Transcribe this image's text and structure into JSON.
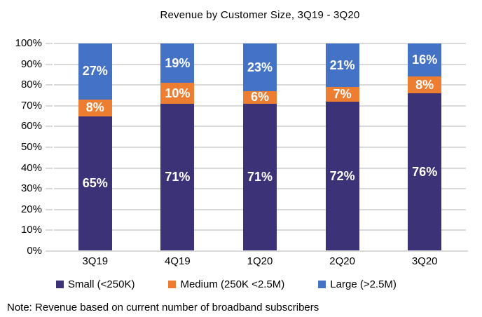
{
  "title": "Revenue by Customer Size, 3Q19 - 3Q20",
  "note": "Note: Revenue based on current number of  broadband subscribers",
  "colors": {
    "small": "#3c3277",
    "medium": "#ed7d31",
    "large": "#4472c4",
    "gridline": "#d9d9d9",
    "axis_line": "#d9d9d9",
    "label_text": "#ffffff"
  },
  "legend": [
    {
      "label": "Small (<250K)",
      "color": "#3c3277"
    },
    {
      "label": "Medium (250K <2.5M)",
      "color": "#ed7d31"
    },
    {
      "label": "Large (>2.5M)",
      "color": "#4472c4"
    }
  ],
  "chart_data": {
    "type": "bar",
    "stacked": true,
    "title": "Revenue by Customer Size, 3Q19 - 3Q20",
    "categories": [
      "3Q19",
      "4Q19",
      "1Q20",
      "2Q20",
      "3Q20"
    ],
    "series": [
      {
        "name": "Small (<250K)",
        "key": "small",
        "color": "#3c3277",
        "values": [
          65,
          71,
          71,
          72,
          76
        ]
      },
      {
        "name": "Medium (250K <2.5M)",
        "key": "medium",
        "color": "#ed7d31",
        "values": [
          8,
          10,
          6,
          7,
          8
        ]
      },
      {
        "name": "Large (>2.5M)",
        "key": "large",
        "color": "#4472c4",
        "values": [
          27,
          19,
          23,
          21,
          16
        ]
      }
    ],
    "data_label_format": "{value}%",
    "xlabel": "",
    "ylabel": "",
    "ylim": [
      0,
      100
    ],
    "yticks_percent": [
      100,
      90,
      80,
      70,
      60,
      50,
      40,
      30,
      20,
      10,
      0
    ],
    "ytick_labels": [
      "100%",
      "90%",
      "80%",
      "70%",
      "60%",
      "50%",
      "40%",
      "30%",
      "20%",
      "10%",
      "0%"
    ],
    "grid": true,
    "legend_position": "bottom"
  }
}
